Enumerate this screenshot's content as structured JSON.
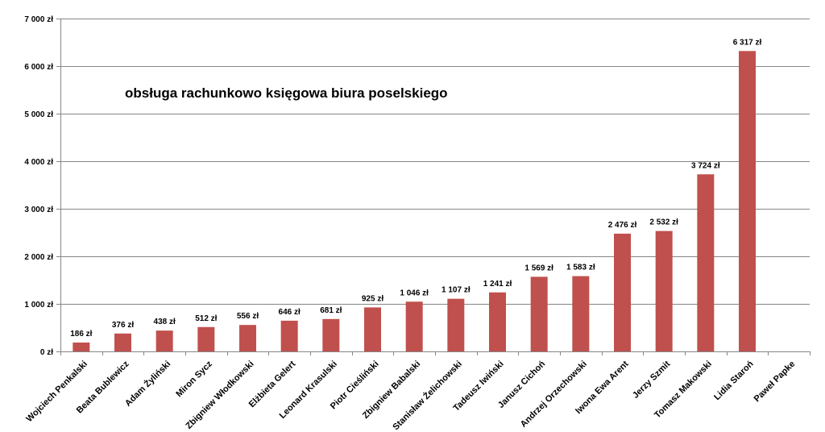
{
  "chart_data": {
    "type": "bar",
    "title": "obsługa rachunkowo księgowa biura poselskiego",
    "xlabel": "",
    "ylabel": "",
    "ylim": [
      0,
      7000
    ],
    "y_ticks": [
      "0 zł",
      "1 000 zł",
      "2 000 zł",
      "3 000 zł",
      "4 000 zł",
      "5 000 zł",
      "6 000 zł",
      "7 000 zł"
    ],
    "grid": true,
    "legend": "none",
    "bar_color": "#c0504d",
    "categories": [
      "Wojciech Penkalski",
      "Beata Bublewicz",
      "Adam Żyliński",
      "Miron Sycz",
      "Zbigniew Włodkowski",
      "Elżbieta Gelert",
      "Leonard Krasulski",
      "Piotr Cieśliński",
      "Zbigniew Babalski",
      "Stanisław Żelichowski",
      "Tadeusz Iwiński",
      "Janusz Cichoń",
      "Andrzej Orzechowski",
      "Iwona Ewa Arent",
      "Jerzy Szmit",
      "Tomasz Makowski",
      "Lidia Staroń",
      "Paweł Papke"
    ],
    "values": [
      186,
      376,
      438,
      512,
      556,
      646,
      681,
      925,
      1046,
      1107,
      1241,
      1569,
      1583,
      2476,
      2532,
      3724,
      6317,
      0
    ],
    "value_labels": [
      "186 zł",
      "376 zł",
      "438 zł",
      "512 zł",
      "556 zł",
      "646 zł",
      "681 zł",
      "925 zł",
      "1 046 zł",
      "1 107 zł",
      "1 241 zł",
      "1 569 zł",
      "1 583 zł",
      "2 476 zł",
      "2 532 zł",
      "3 724 zł",
      "6 317 zł",
      ""
    ]
  }
}
